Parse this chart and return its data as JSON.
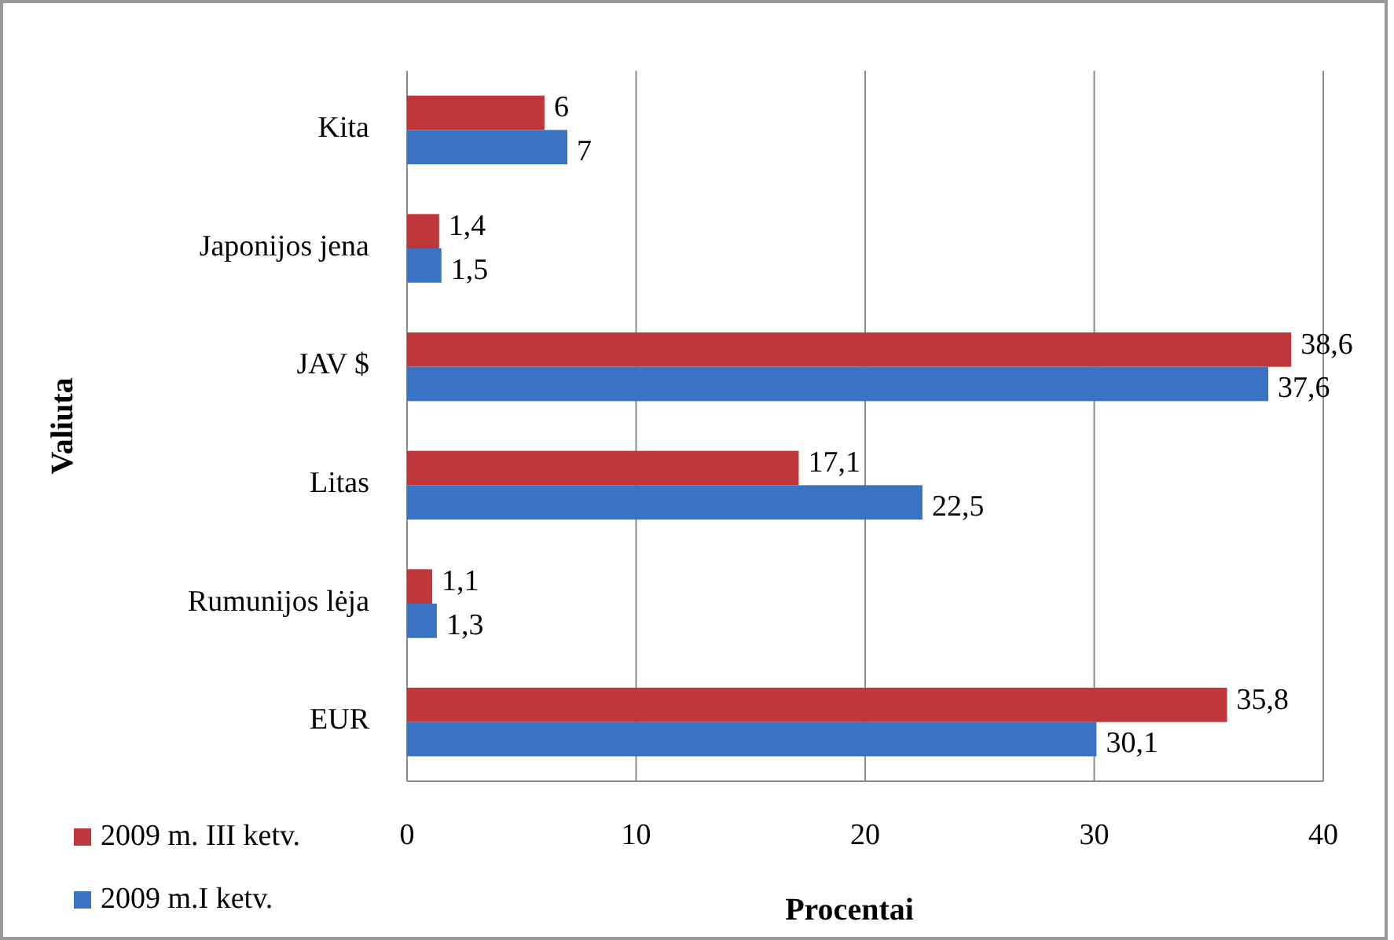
{
  "chart_data": {
    "type": "bar",
    "orientation": "horizontal",
    "xlabel": "Procentai",
    "ylabel": "Valiuta",
    "categories": [
      "Kita",
      "Japonijos jena",
      "JAV $",
      "Litas",
      "Rumunijos lėja",
      "EUR"
    ],
    "series": [
      {
        "name": "2009 m. III ketv.",
        "color": "#c0373a",
        "values": [
          6,
          1.4,
          38.6,
          17.1,
          1.1,
          35.8
        ],
        "value_labels": [
          "6",
          "1,4",
          "38,6",
          "17,1",
          "1,1",
          "35,8"
        ]
      },
      {
        "name": "2009 m.I ketv.",
        "color": "#3a73c4",
        "values": [
          7,
          1.5,
          37.6,
          22.5,
          1.3,
          30.1
        ],
        "value_labels": [
          "7",
          "1,5",
          "37,6",
          "22,5",
          "1,3",
          "30,1"
        ]
      }
    ],
    "xlim": [
      0,
      40
    ],
    "xticks": [
      0,
      10,
      20,
      30,
      40
    ],
    "grid": "x",
    "legend": "bottom left"
  }
}
